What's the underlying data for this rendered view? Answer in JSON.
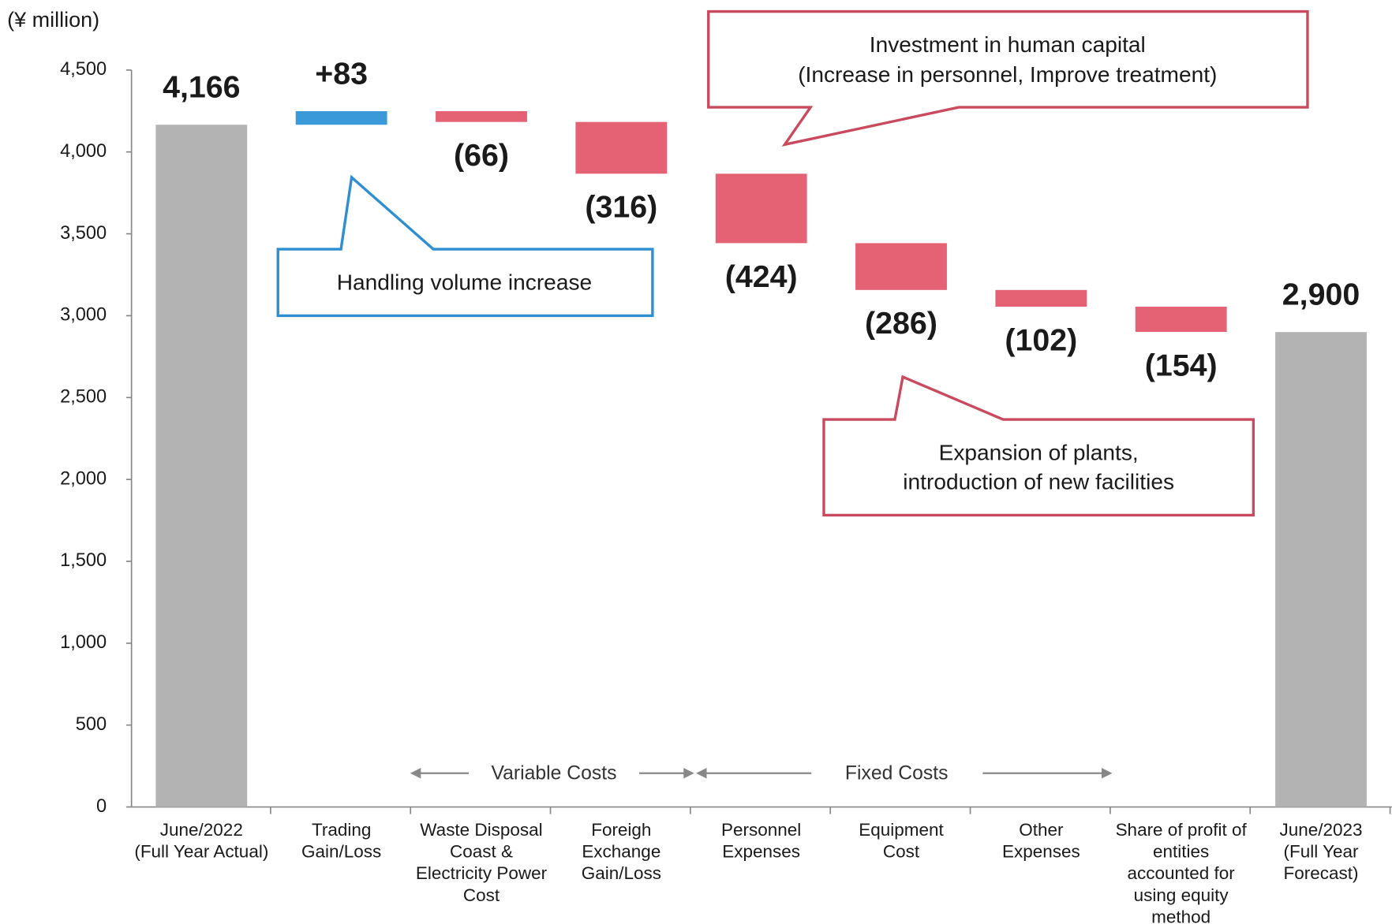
{
  "chart_data": {
    "type": "waterfall",
    "y_unit_label": "(¥ million)",
    "categories": [
      [
        "June/2022",
        "(Full Year Actual)"
      ],
      [
        "Trading",
        "Gain/Loss"
      ],
      [
        "Waste Disposal",
        "Coast &",
        "Electricity Power",
        "Cost"
      ],
      [
        "Foreigh",
        "Exchange",
        "Gain/Loss"
      ],
      [
        "Personnel",
        "Expenses"
      ],
      [
        "Equipment",
        "Cost"
      ],
      [
        "Other",
        "Expenses"
      ],
      [
        "Share of profit of",
        "entities",
        "accounted for",
        "using equity",
        "method"
      ],
      [
        "June/2023",
        "(Full Year",
        "Forecast)"
      ]
    ],
    "values": [
      4166,
      83,
      -66,
      -316,
      -424,
      -286,
      -102,
      -154,
      2900
    ],
    "value_labels": [
      "4,166",
      "+83",
      "(66)",
      "(316)",
      "(424)",
      "(286)",
      "(102)",
      "(154)",
      "2,900"
    ],
    "measure": [
      "absolute",
      "relative",
      "relative",
      "relative",
      "relative",
      "relative",
      "relative",
      "relative",
      "absolute"
    ],
    "colors": {
      "total": "#b3b3b3",
      "increase": "#3a9ad9",
      "decrease": "#e56274"
    },
    "ylim": [
      0,
      4500
    ],
    "yticks": [
      0,
      500,
      {
        "value": 1000,
        "label": "1,000"
      },
      {
        "value": 1500,
        "label": "1,500"
      },
      {
        "value": 2000,
        "label": "2,000"
      },
      {
        "value": 2500,
        "label": "2,500"
      },
      {
        "value": 3000,
        "label": "3,000"
      },
      {
        "value": 3500,
        "label": "3,500"
      },
      {
        "value": 4000,
        "label": "4,000"
      },
      {
        "value": 4500,
        "label": "4,500"
      }
    ],
    "grid": false,
    "annotations": [
      [
        "Investment in human capital",
        "(Increase in personnel, Improve treatment)"
      ],
      [
        "Handling volume increase"
      ],
      [
        "Expansion of plants,",
        "introduction of new facilities"
      ]
    ],
    "group_labels": [
      "Variable Costs",
      "Fixed Costs"
    ]
  }
}
